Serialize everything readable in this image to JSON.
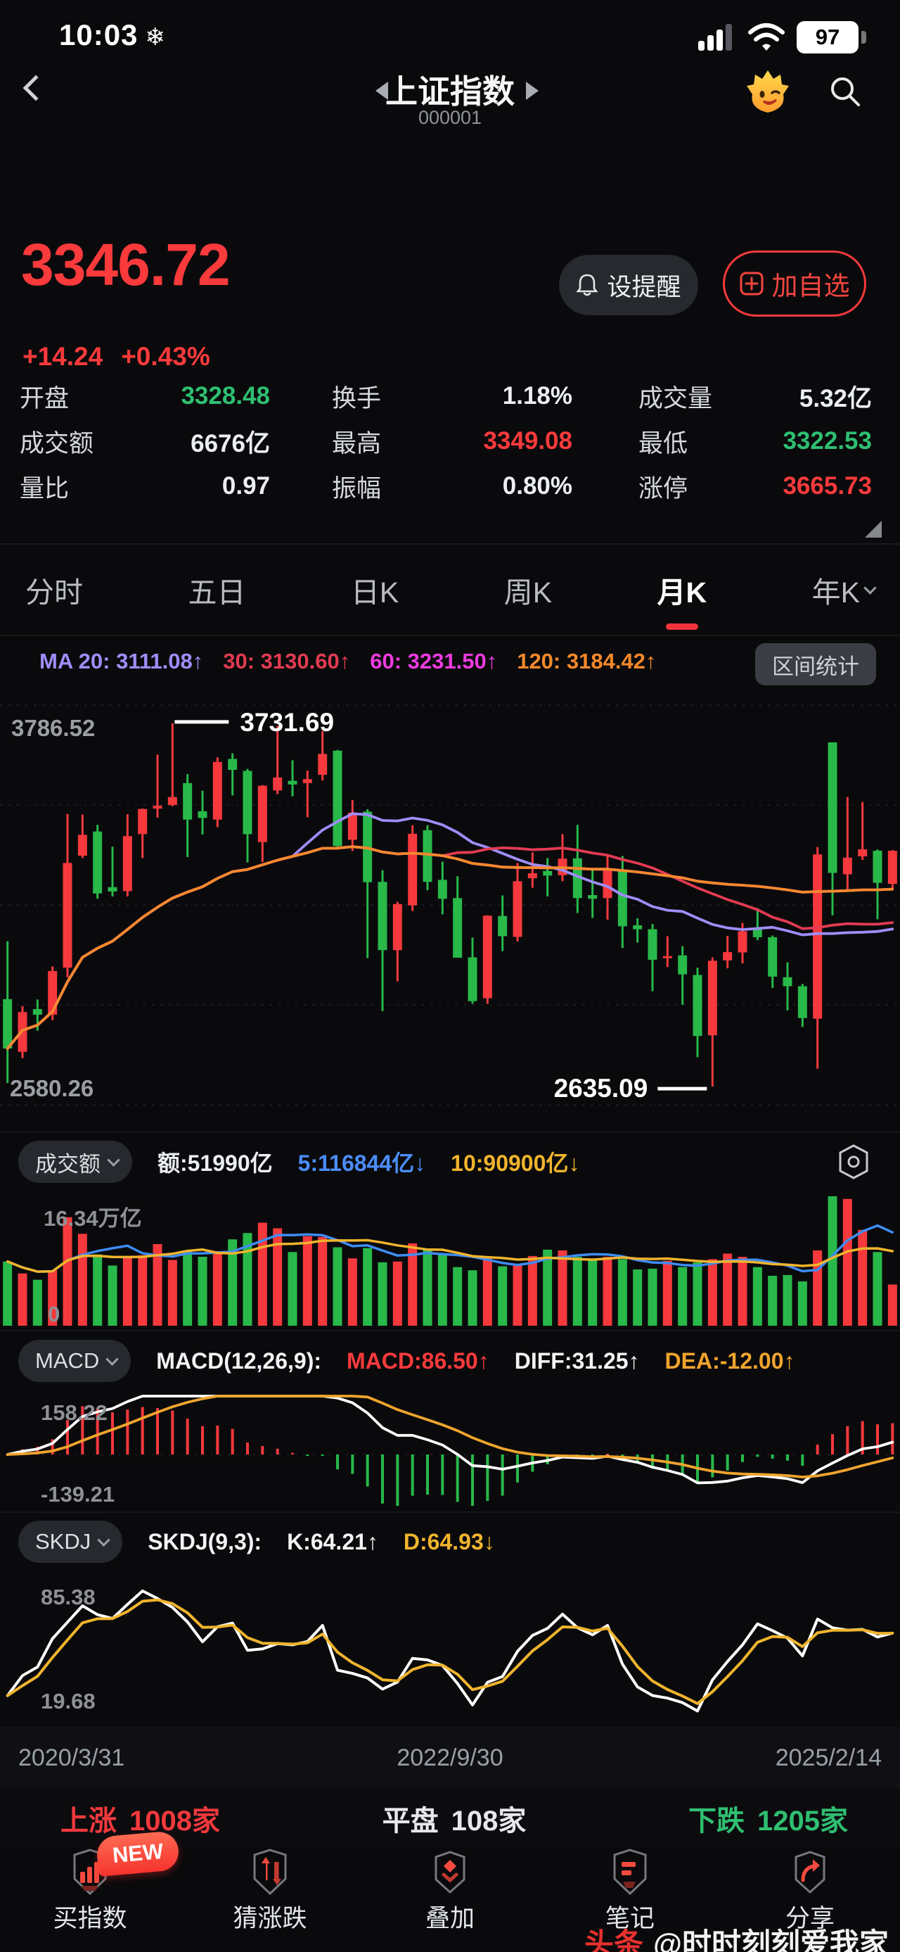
{
  "status_bar": {
    "time": "10:03",
    "weather_icon": "❄",
    "battery": "97"
  },
  "ui": {
    "chevron": "v"
  },
  "header": {
    "title": "上证指数",
    "code": "000001"
  },
  "quote": {
    "price": "3346.72",
    "change": "+14.24",
    "change_pct": "+0.43%",
    "alert_button": "设提醒",
    "watchlist_button": "加自选",
    "up_color": "#fb3a3c",
    "down_color": "#2fbf71"
  },
  "stats": {
    "cells": [
      {
        "label": "开盘",
        "value": "3328.48",
        "color": "#2fbf71"
      },
      {
        "label": "换手",
        "value": "1.18%",
        "color": "#eceff2"
      },
      {
        "label": "成交量",
        "value": "5.32亿",
        "color": "#eceff2"
      },
      {
        "label": "成交额",
        "value": "6676亿",
        "color": "#eceff2"
      },
      {
        "label": "最高",
        "value": "3349.08",
        "color": "#fb3a3c"
      },
      {
        "label": "最低",
        "value": "3322.53",
        "color": "#2fbf71"
      },
      {
        "label": "量比",
        "value": "0.97",
        "color": "#eceff2"
      },
      {
        "label": "振幅",
        "value": "0.80%",
        "color": "#eceff2"
      },
      {
        "label": "涨停",
        "value": "3665.73",
        "color": "#fb3a3c"
      }
    ]
  },
  "tabs": {
    "active": "月K",
    "items": [
      {
        "label": "分时"
      },
      {
        "label": "五日"
      },
      {
        "label": "日K"
      },
      {
        "label": "周K"
      },
      {
        "label": "月K"
      },
      {
        "label": "年K"
      }
    ]
  },
  "range_stats_button": "区间统计",
  "vol_header": {
    "selector": "成交额",
    "items": [
      {
        "text": "额:51990亿",
        "color": "#eceff2"
      },
      {
        "text": "5:116844亿↓",
        "color": "#4b8df8"
      },
      {
        "text": "10:90900亿↓",
        "color": "#f0b42d"
      }
    ]
  },
  "macd_header": {
    "selector": "MACD",
    "formula": "MACD(12,26,9):",
    "items": [
      {
        "text": "MACD:86.50↑",
        "color": "#fb3a3c"
      },
      {
        "text": "DIFF:31.25↑",
        "color": "#f2f3f5"
      },
      {
        "text": "DEA:-12.00↑",
        "color": "#f0a42d"
      }
    ]
  },
  "skdj_header": {
    "selector": "SKDJ",
    "formula": "SKDJ(9,3):",
    "items": [
      {
        "text": "K:64.21↑",
        "color": "#f2f3f5"
      },
      {
        "text": "D:64.93↓",
        "color": "#f0b42d"
      }
    ]
  },
  "breadth": {
    "items": [
      {
        "label": "上涨",
        "value": "1008家",
        "color": "#f2393d"
      },
      {
        "label": "平盘",
        "value": "108家",
        "color": "#e6e8ea"
      },
      {
        "label": "下跌",
        "value": "1205家",
        "color": "#2fbf71"
      }
    ]
  },
  "bottom_nav": {
    "badge": "NEW",
    "items": [
      {
        "label": "买指数"
      },
      {
        "label": "猜涨跌"
      },
      {
        "label": "叠加"
      },
      {
        "label": "笔记"
      },
      {
        "label": "分享"
      }
    ]
  },
  "watermark": {
    "brand": "头条",
    "handle": "@时时刻刻爱我家"
  },
  "chart_data": {
    "type": "candlestick+volume+macd+skdj",
    "x_axis_labels": [
      "2020/3/31",
      "2022/9/30",
      "2025/2/14"
    ],
    "kline": {
      "period": "月K",
      "y_max": 3786.52,
      "y_min": 2580.26,
      "y_max_label": "3786.52",
      "y_min_label": "2580.26",
      "high_annotation": "3731.69",
      "low_annotation": "2635.09",
      "up_color": "#f5393d",
      "down_color": "#28b94a",
      "ma_lines": [
        {
          "label": "MA 20: 3111.08↑",
          "period": 20,
          "color": "#a08dfb"
        },
        {
          "label": "30: 3130.60↑",
          "period": 30,
          "color": "#e23b52"
        },
        {
          "label": "60: 3231.50↑",
          "period": 60,
          "color": "#ee3be0"
        },
        {
          "label": "120: 3184.42↑",
          "period": 120,
          "color": "#f5892b"
        }
      ],
      "candles": [
        [
          "2020/3",
          2899,
          3074,
          2646,
          2750
        ],
        [
          "2020/4",
          2740,
          2878,
          2721,
          2860
        ],
        [
          "2020/5",
          2869,
          2898,
          2804,
          2852
        ],
        [
          "2020/6",
          2852,
          2998,
          2836,
          2984
        ],
        [
          "2020/7",
          2994,
          3458,
          2965,
          3310
        ],
        [
          "2020/8",
          3332,
          3456,
          3325,
          3395
        ],
        [
          "2020/9",
          3405,
          3425,
          3202,
          3218
        ],
        [
          "2020/10",
          3237,
          3359,
          3209,
          3224
        ],
        [
          "2020/11",
          3225,
          3457,
          3209,
          3391
        ],
        [
          "2020/12",
          3397,
          3474,
          3325,
          3473
        ],
        [
          "2021/1",
          3474,
          3637,
          3447,
          3483
        ],
        [
          "2021/2",
          3485,
          3731.69,
          3481,
          3509
        ],
        [
          "2021/3",
          3551,
          3578,
          3328,
          3441
        ],
        [
          "2021/4",
          3466,
          3528,
          3396,
          3446
        ],
        [
          "2021/5",
          3441,
          3629,
          3418,
          3615
        ],
        [
          "2021/6",
          3624,
          3641,
          3514,
          3591
        ],
        [
          "2021/7",
          3588,
          3594,
          3312,
          3397
        ],
        [
          "2021/8",
          3373,
          3545,
          3313,
          3543
        ],
        [
          "2021/9",
          3529,
          3723,
          3518,
          3568
        ],
        [
          "2021/10",
          3558,
          3620,
          3511,
          3547
        ],
        [
          "2021/11",
          3551,
          3589,
          3448,
          3563
        ],
        [
          "2021/12",
          3576,
          3708,
          3559,
          3639
        ],
        [
          "2022/1",
          3649,
          3651,
          3356,
          3361
        ],
        [
          "2022/2",
          3380,
          3500,
          3346,
          3462
        ],
        [
          "2022/3",
          3465,
          3472,
          3023,
          3252
        ],
        [
          "2022/4",
          3253,
          3288,
          2863,
          3047
        ],
        [
          "2022/5",
          3047,
          3193,
          2953,
          3186
        ],
        [
          "2022/6",
          3182,
          3424,
          3165,
          3398
        ],
        [
          "2022/7",
          3409,
          3424,
          3228,
          3253
        ],
        [
          "2022/8",
          3259,
          3314,
          3155,
          3202
        ],
        [
          "2022/9",
          3204,
          3270,
          3024,
          3024
        ],
        [
          "2022/10",
          3025,
          3085,
          2885,
          2893
        ],
        [
          "2022/11",
          2902,
          3152,
          2885,
          3151
        ],
        [
          "2022/12",
          3150,
          3212,
          3044,
          3089
        ],
        [
          "2023/1",
          3087,
          3310,
          3073,
          3255
        ],
        [
          "2023/2",
          3264,
          3342,
          3235,
          3279
        ],
        [
          "2023/3",
          3286,
          3325,
          3209,
          3272
        ],
        [
          "2023/4",
          3273,
          3397,
          3255,
          3323
        ],
        [
          "2023/5",
          3324,
          3425,
          3159,
          3204
        ],
        [
          "2023/6",
          3213,
          3288,
          3144,
          3202
        ],
        [
          "2023/7",
          3204,
          3335,
          3139,
          3291
        ],
        [
          "2023/8",
          3289,
          3331,
          3053,
          3119
        ],
        [
          "2023/9",
          3122,
          3143,
          3070,
          3110
        ],
        [
          "2023/10",
          3110,
          3126,
          2923,
          3018
        ],
        [
          "2023/11",
          3023,
          3089,
          2996,
          3029
        ],
        [
          "2023/12",
          3031,
          3059,
          2882,
          2974
        ],
        [
          "2024/1",
          2972,
          2994,
          2724,
          2788
        ],
        [
          "2024/2",
          2790,
          3025,
          2635.09,
          3015
        ],
        [
          "2024/3",
          3016,
          3090,
          2992,
          3041
        ],
        [
          "2024/4",
          3040,
          3129,
          3007,
          3104
        ],
        [
          "2024/5",
          3113,
          3174,
          3077,
          3086
        ],
        [
          "2024/6",
          3086,
          3091,
          2933,
          2967
        ],
        [
          "2024/7",
          2965,
          3010,
          2865,
          2938
        ],
        [
          "2024/8",
          2938,
          2945,
          2815,
          2842
        ],
        [
          "2024/9",
          2840,
          3358,
          2689,
          3336
        ],
        [
          "2024/10",
          3674,
          3674,
          3152,
          3280
        ],
        [
          "2024/11",
          3276,
          3509,
          3227,
          3326
        ],
        [
          "2024/12",
          3330,
          3494,
          3319,
          3351
        ],
        [
          "2025/1",
          3347,
          3351,
          3140,
          3250
        ],
        [
          "2025/2",
          3247,
          3349.08,
          3227,
          3346.72
        ]
      ]
    },
    "volume": {
      "y_max": 16.34,
      "y_max_label": "16.34万亿",
      "y_min_label": "0",
      "unit": "万亿",
      "ma5_color": "#3f8cf3",
      "ma10_color": "#f0b42d",
      "values": [
        8.1,
        6.6,
        5.8,
        7.0,
        13.7,
        11.6,
        9.0,
        7.6,
        8.6,
        8.9,
        10.3,
        8.3,
        9.5,
        8.7,
        9.4,
        10.9,
        11.7,
        13.0,
        12.3,
        9.3,
        11.3,
        11.2,
        9.9,
        8.5,
        9.8,
        8.0,
        8.1,
        10.4,
        9.6,
        9.1,
        7.4,
        7.0,
        8.6,
        7.5,
        7.8,
        8.8,
        9.6,
        9.5,
        8.7,
        8.5,
        8.7,
        8.4,
        7.1,
        7.2,
        8.2,
        7.4,
        8.0,
        8.4,
        9.1,
        8.7,
        7.4,
        6.3,
        6.4,
        5.6,
        9.5,
        16.34,
        16.0,
        12.1,
        9.3,
        5.2
      ]
    },
    "macd": {
      "params": "(12,26,9)",
      "y_max": 158.22,
      "y_min": -139.21,
      "y_max_label": "158.22",
      "y_min_label": "-139.21",
      "diff_color": "#ffffff",
      "dea_color": "#f0a42d"
    },
    "skdj": {
      "params": "(9,3)",
      "y_max": 85.38,
      "y_min": 19.68,
      "y_max_label": "85.38",
      "y_min_label": "19.68",
      "k_color": "#ffffff",
      "d_color": "#f0b42d"
    }
  }
}
